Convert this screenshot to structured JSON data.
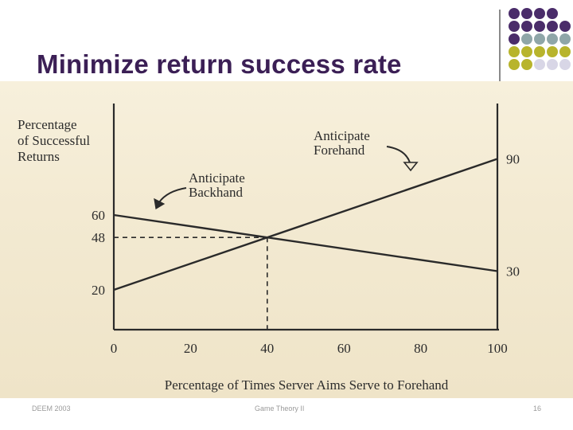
{
  "slide": {
    "title": "Minimize return success rate",
    "footer_left": "DEEM 2003",
    "footer_center": "Game Theory II",
    "footer_right": "16"
  },
  "decor": {
    "dot_colors": [
      "#4a2c6a",
      "#8fa6a8",
      "#b8b42c",
      "#d8d6e6"
    ]
  },
  "chart_data": {
    "type": "line",
    "ylabel": [
      "Percentage",
      "of Successful",
      "Returns"
    ],
    "xlabel": "Percentage of Times Server Aims Serve to Forehand",
    "xlim": [
      0,
      100
    ],
    "ylim": [
      0,
      100
    ],
    "x_ticks": [
      "0",
      "20",
      "40",
      "60",
      "80",
      "100"
    ],
    "x_tick_values": [
      0,
      20,
      40,
      60,
      80,
      100
    ],
    "y_left_labels": [
      {
        "text": "60",
        "value": 60
      },
      {
        "text": "48",
        "value": 48
      },
      {
        "text": "20",
        "value": 20
      }
    ],
    "y_right_labels": [
      {
        "text": "90",
        "value": 90
      },
      {
        "text": "30",
        "value": 30
      }
    ],
    "series": [
      {
        "name": "Anticipate Forehand",
        "x": [
          0,
          100
        ],
        "y": [
          20,
          90
        ]
      },
      {
        "name": "Anticipate Backhand",
        "x": [
          0,
          100
        ],
        "y": [
          60,
          30
        ]
      }
    ],
    "annotations": [
      {
        "text": [
          "Anticipate",
          "Forehand"
        ],
        "series": 0
      },
      {
        "text": [
          "Anticipate",
          "Backhand"
        ],
        "series": 1
      }
    ],
    "intersection": {
      "x": 40,
      "y": 48
    },
    "grid": false,
    "legend": "none"
  }
}
